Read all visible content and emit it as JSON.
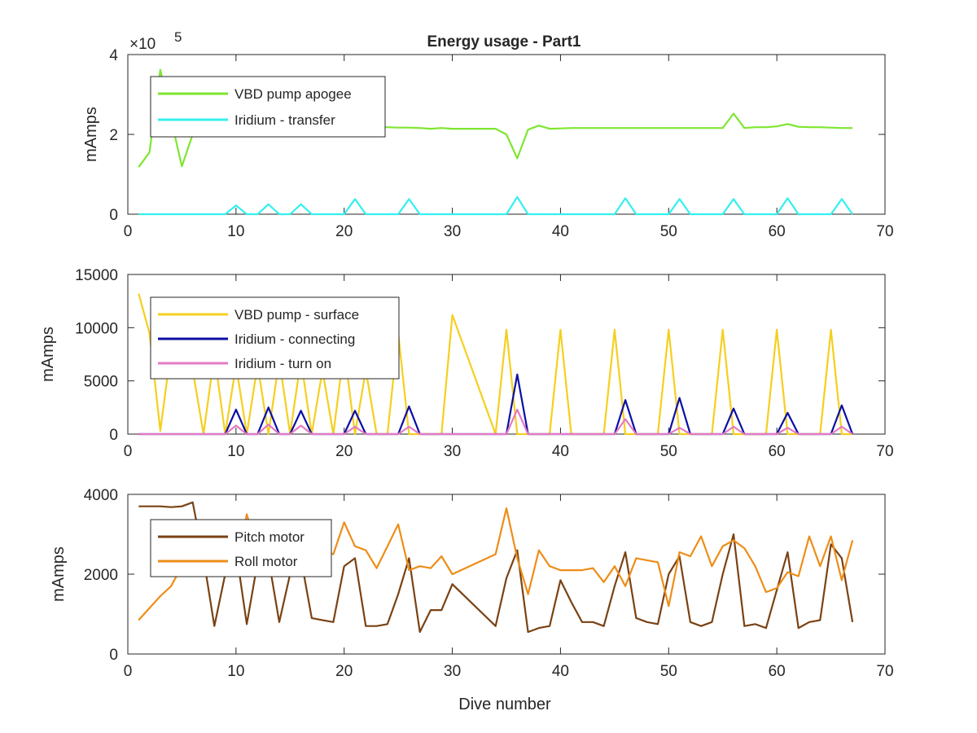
{
  "chart_data": [
    {
      "type": "line",
      "title": "Energy usage - Part1",
      "xlabel": "",
      "ylabel": "mAmps",
      "xlim": [
        0,
        70
      ],
      "ylim": [
        0,
        400000
      ],
      "xticks": [
        "0",
        "10",
        "20",
        "30",
        "40",
        "50",
        "60",
        "70"
      ],
      "yticks": [
        "0",
        "2",
        "4"
      ],
      "ytick_values": [
        0,
        200000,
        400000
      ],
      "exponent_label": "×10",
      "exponent_power": "5",
      "legend_position": "top-left",
      "grid": false,
      "series": [
        {
          "name": "VBD pump apogee",
          "color": "#7ee630",
          "x": [
            1,
            2,
            3,
            4,
            5,
            6,
            7,
            8,
            9,
            10,
            11,
            12,
            13,
            14,
            15,
            16,
            17,
            18,
            19,
            20,
            21,
            22,
            23,
            24,
            25,
            26,
            27,
            28,
            29,
            30,
            31,
            32,
            33,
            34,
            35,
            36,
            37,
            38,
            39,
            40,
            41,
            42,
            43,
            44,
            45,
            46,
            47,
            48,
            49,
            50,
            51,
            52,
            53,
            54,
            55,
            56,
            57,
            58,
            59,
            60,
            61,
            62,
            63,
            64,
            65,
            66,
            67
          ],
          "y": [
            118000,
            155000,
            362000,
            238000,
            120000,
            200000,
            205000,
            210000,
            215000,
            218000,
            216000,
            218000,
            219000,
            218000,
            217000,
            216000,
            218000,
            217000,
            216000,
            218000,
            218000,
            217000,
            218000,
            218000,
            217000,
            217000,
            216000,
            214000,
            216000,
            214000,
            214000,
            214000,
            214000,
            214000,
            200000,
            140000,
            212000,
            222000,
            214000,
            215000,
            216000,
            216000,
            216000,
            216000,
            216000,
            216000,
            216000,
            216000,
            216000,
            216000,
            216000,
            216000,
            216000,
            216000,
            216000,
            252000,
            216000,
            218000,
            218000,
            220000,
            226000,
            219000,
            218000,
            218000,
            217000,
            216000,
            216000
          ]
        },
        {
          "name": "Iridium - transfer",
          "color": "#33f0f0",
          "x": [
            1,
            9,
            10,
            11,
            12,
            13,
            14,
            15,
            16,
            17,
            20,
            21,
            22,
            25,
            26,
            27,
            35,
            36,
            37,
            45,
            46,
            47,
            50,
            51,
            52,
            55,
            56,
            57,
            60,
            61,
            62,
            65,
            66,
            67
          ],
          "y": [
            0,
            0,
            22000,
            0,
            0,
            25000,
            0,
            0,
            25000,
            0,
            0,
            38000,
            0,
            0,
            38000,
            0,
            0,
            43000,
            0,
            0,
            40000,
            0,
            0,
            38000,
            0,
            0,
            38000,
            0,
            0,
            40000,
            0,
            0,
            38000,
            0
          ]
        }
      ]
    },
    {
      "type": "line",
      "title": "",
      "xlabel": "",
      "ylabel": "mAmps",
      "xlim": [
        0,
        70
      ],
      "ylim": [
        0,
        15000
      ],
      "xticks": [
        "0",
        "10",
        "20",
        "30",
        "40",
        "50",
        "60",
        "70"
      ],
      "yticks": [
        "0",
        "5000",
        "10000",
        "15000"
      ],
      "ytick_values": [
        0,
        5000,
        10000,
        15000
      ],
      "legend_position": "top-left",
      "grid": false,
      "series": [
        {
          "name": "VBD pump - surface",
          "color": "#f5cf1f",
          "x": [
            1,
            2,
            3,
            4,
            5,
            6,
            7,
            8,
            9,
            10,
            11,
            12,
            13,
            14,
            15,
            16,
            17,
            18,
            19,
            20,
            21,
            22,
            23,
            24,
            25,
            26,
            27,
            28,
            29,
            30,
            34,
            35,
            36,
            37,
            38,
            39,
            40,
            41,
            42,
            43,
            44,
            45,
            46,
            47,
            48,
            49,
            50,
            51,
            52,
            53,
            54,
            55,
            56,
            57,
            58,
            59,
            60,
            61,
            62,
            63,
            64,
            65,
            66,
            67
          ],
          "y": [
            13200,
            9500,
            300,
            8000,
            9000,
            6000,
            0,
            7500,
            0,
            6500,
            0,
            6500,
            0,
            7000,
            0,
            7000,
            0,
            6000,
            0,
            8000,
            0,
            6000,
            0,
            0,
            9500,
            0,
            0,
            0,
            0,
            11200,
            0,
            9800,
            0,
            0,
            0,
            0,
            9800,
            0,
            0,
            0,
            0,
            9800,
            0,
            0,
            0,
            0,
            9800,
            0,
            0,
            0,
            0,
            9800,
            0,
            0,
            0,
            0,
            9800,
            0,
            0,
            0,
            0,
            9800,
            0,
            0
          ]
        },
        {
          "name": "Iridium - connecting",
          "color": "#0b0fa3",
          "x": [
            1,
            9,
            10,
            11,
            12,
            13,
            14,
            15,
            16,
            17,
            20,
            21,
            22,
            25,
            26,
            27,
            35,
            36,
            37,
            45,
            46,
            47,
            50,
            51,
            52,
            55,
            56,
            57,
            60,
            61,
            62,
            65,
            66,
            67
          ],
          "y": [
            0,
            0,
            2300,
            0,
            0,
            2500,
            0,
            0,
            2200,
            0,
            0,
            2200,
            0,
            0,
            2600,
            0,
            0,
            5600,
            0,
            0,
            3200,
            0,
            0,
            3400,
            0,
            0,
            2400,
            0,
            0,
            2000,
            0,
            0,
            2700,
            0
          ]
        },
        {
          "name": "Iridium - turn on",
          "color": "#e37ac4",
          "x": [
            1,
            9,
            10,
            11,
            12,
            13,
            14,
            15,
            16,
            17,
            20,
            21,
            22,
            25,
            26,
            27,
            35,
            36,
            37,
            45,
            46,
            47,
            50,
            51,
            52,
            55,
            56,
            57,
            60,
            61,
            62,
            65,
            66,
            67
          ],
          "y": [
            0,
            0,
            800,
            0,
            0,
            900,
            0,
            0,
            800,
            0,
            0,
            700,
            0,
            0,
            700,
            0,
            0,
            2300,
            0,
            0,
            1400,
            0,
            0,
            600,
            0,
            0,
            700,
            0,
            0,
            600,
            0,
            0,
            700,
            0
          ]
        }
      ]
    },
    {
      "type": "line",
      "title": "",
      "xlabel": "Dive number",
      "ylabel": "mAmps",
      "xlim": [
        0,
        70
      ],
      "ylim": [
        0,
        4000
      ],
      "xticks": [
        "0",
        "10",
        "20",
        "30",
        "40",
        "50",
        "60",
        "70"
      ],
      "yticks": [
        "0",
        "2000",
        "4000"
      ],
      "ytick_values": [
        0,
        2000,
        4000
      ],
      "legend_position": "top-left",
      "grid": false,
      "series": [
        {
          "name": "Pitch motor",
          "color": "#7a4213",
          "x": [
            1,
            2,
            3,
            4,
            5,
            6,
            7,
            8,
            9,
            10,
            11,
            12,
            13,
            14,
            15,
            16,
            17,
            18,
            19,
            20,
            21,
            22,
            23,
            24,
            25,
            26,
            27,
            28,
            29,
            30,
            34,
            35,
            36,
            37,
            38,
            39,
            40,
            41,
            42,
            43,
            44,
            45,
            46,
            47,
            48,
            49,
            50,
            51,
            52,
            53,
            54,
            55,
            56,
            57,
            58,
            59,
            60,
            61,
            62,
            63,
            64,
            65,
            66,
            67
          ],
          "y": [
            3700,
            3700,
            3700,
            3680,
            3700,
            3800,
            2400,
            700,
            2000,
            2600,
            750,
            2300,
            2400,
            800,
            2000,
            2400,
            900,
            850,
            800,
            2200,
            2400,
            700,
            700,
            750,
            1500,
            2400,
            550,
            1100,
            1100,
            1750,
            700,
            1900,
            2600,
            550,
            650,
            700,
            1850,
            1300,
            800,
            800,
            700,
            1700,
            2550,
            900,
            800,
            750,
            2000,
            2450,
            800,
            700,
            800,
            2000,
            3000,
            700,
            750,
            650,
            1600,
            2550,
            650,
            800,
            850,
            2750,
            2400,
            800
          ]
        },
        {
          "name": "Roll motor",
          "color": "#ed8d18",
          "x": [
            1,
            2,
            3,
            4,
            5,
            6,
            7,
            8,
            9,
            10,
            11,
            12,
            13,
            14,
            15,
            16,
            17,
            18,
            19,
            20,
            21,
            22,
            23,
            24,
            25,
            26,
            27,
            28,
            29,
            30,
            34,
            35,
            36,
            37,
            38,
            39,
            40,
            41,
            42,
            43,
            44,
            45,
            46,
            47,
            48,
            49,
            50,
            51,
            52,
            53,
            54,
            55,
            56,
            57,
            58,
            59,
            60,
            61,
            62,
            63,
            64,
            65,
            66,
            67
          ],
          "y": [
            850,
            1150,
            1450,
            1700,
            2200,
            2250,
            2300,
            2000,
            2400,
            2000,
            3500,
            2600,
            2800,
            2200,
            2600,
            2300,
            2300,
            2600,
            2500,
            3300,
            2700,
            2600,
            2150,
            2700,
            3250,
            2100,
            2200,
            2150,
            2450,
            2000,
            2500,
            3650,
            2400,
            1500,
            2600,
            2200,
            2100,
            2100,
            2100,
            2150,
            1800,
            2200,
            1700,
            2400,
            2350,
            2300,
            1200,
            2550,
            2450,
            2950,
            2200,
            2700,
            2850,
            2650,
            2200,
            1550,
            1650,
            2050,
            1950,
            2950,
            2200,
            2950,
            1850,
            2850
          ]
        }
      ]
    }
  ]
}
